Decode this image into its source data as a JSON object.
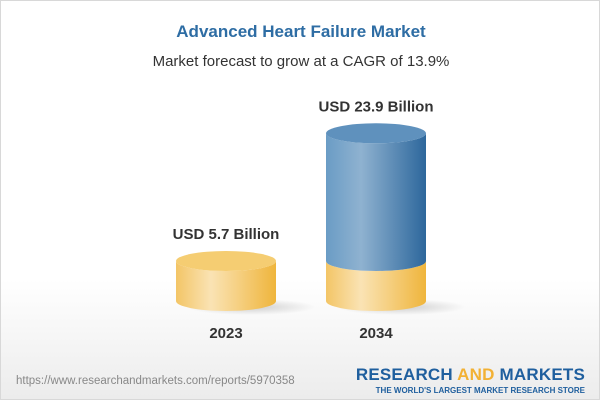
{
  "title": "Advanced Heart Failure Market",
  "subtitle": "Market forecast to grow at a CAGR of 13.9%",
  "chart_data": {
    "type": "bar",
    "style": "3d-cylinder",
    "categories": [
      "2023",
      "2034"
    ],
    "values": [
      5.7,
      23.9
    ],
    "data_labels": [
      "USD 5.7 Billion",
      "USD 23.9 Billion"
    ],
    "unit": "USD Billion",
    "cagr": "13.9%",
    "colors": {
      "base": "#f2c15a",
      "growth": "#4f86b5"
    }
  },
  "footer": {
    "url": "https://www.researchandmarkets.com/reports/5970358",
    "logo_part1": "RESEARCH ",
    "logo_part2": "AND",
    "logo_part3": " MARKETS",
    "tagline": "THE WORLD'S LARGEST MARKET RESEARCH STORE"
  }
}
